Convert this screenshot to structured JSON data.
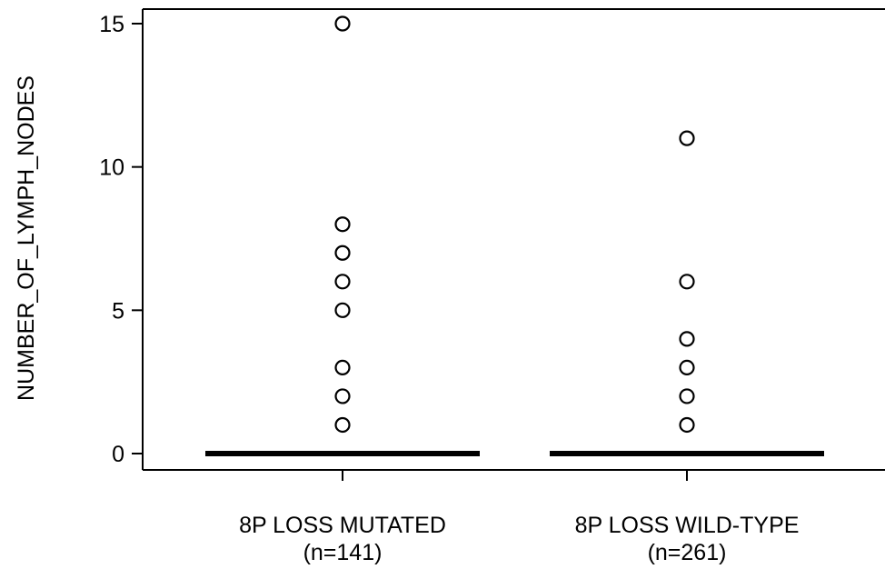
{
  "chart_data": {
    "type": "box",
    "ylabel": "NUMBER_OF_LYMPH_NODES",
    "xlabel": "",
    "ylim": [
      0,
      15
    ],
    "y_ticks": [
      0,
      5,
      10,
      15
    ],
    "grid": false,
    "legend": "none",
    "categories": [
      {
        "label": "8P LOSS MUTATED",
        "count_label": "(n=141)"
      },
      {
        "label": "8P LOSS WILD-TYPE",
        "count_label": "(n=261)"
      }
    ],
    "series": [
      {
        "category": "8P LOSS MUTATED",
        "n": 141,
        "q1": 0,
        "median": 0,
        "q3": 0,
        "whisker_low": 0,
        "whisker_high": 0,
        "outliers": [
          1,
          2,
          3,
          5,
          6,
          7,
          8,
          15
        ]
      },
      {
        "category": "8P LOSS WILD-TYPE",
        "n": 261,
        "q1": 0,
        "median": 0,
        "q3": 0,
        "whisker_low": 0,
        "whisker_high": 0,
        "outliers": [
          1,
          2,
          3,
          4,
          6,
          11
        ]
      }
    ]
  }
}
